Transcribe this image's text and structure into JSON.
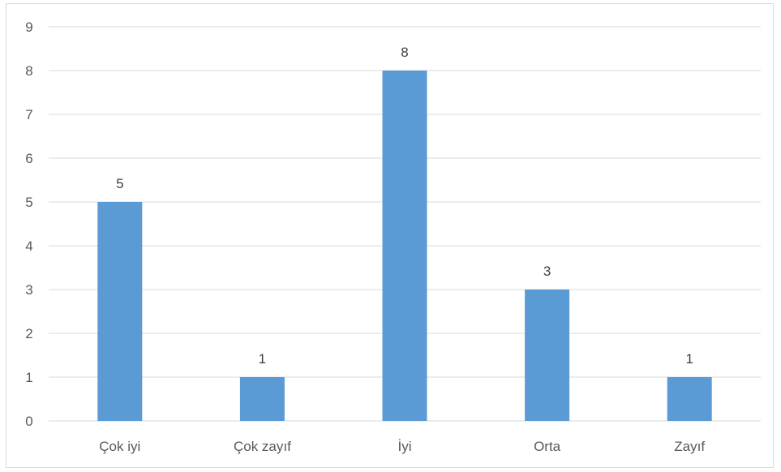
{
  "chart_data": {
    "type": "bar",
    "categories": [
      "Çok iyi",
      "Çok zayıf",
      "İyi",
      "Orta",
      "Zayıf"
    ],
    "values": [
      5,
      1,
      8,
      3,
      1
    ],
    "title": "",
    "xlabel": "",
    "ylabel": "",
    "ylim": [
      0,
      9
    ],
    "yticks": [
      0,
      1,
      2,
      3,
      4,
      5,
      6,
      7,
      8,
      9
    ],
    "grid": true,
    "legend": "none",
    "data_labels": true,
    "bar_color": "#5b9bd5",
    "grid_color": "#d9d9d9"
  }
}
